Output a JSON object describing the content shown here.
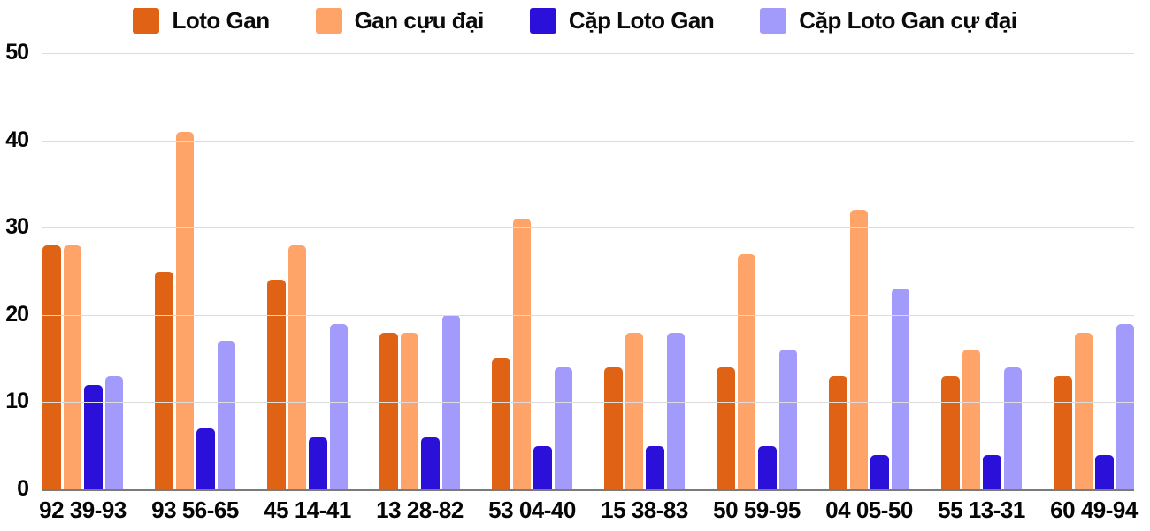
{
  "chart_data": {
    "type": "bar",
    "title": "",
    "xlabel": "",
    "ylabel": "",
    "ylim": [
      0,
      50
    ],
    "yticks": [
      0,
      10,
      20,
      30,
      40,
      50
    ],
    "grid": true,
    "legend_position": "top",
    "categories": [
      "92 39-93",
      "93 56-65",
      "45 14-41",
      "13 28-82",
      "53 04-40",
      "15 38-83",
      "50 59-95",
      "04 05-50",
      "55 13-31",
      "60 49-94"
    ],
    "series": [
      {
        "name": "Loto Gan",
        "color": "#e06215",
        "values": [
          28,
          25,
          24,
          18,
          15,
          14,
          14,
          13,
          13,
          13
        ]
      },
      {
        "name": "Gan cựu đại",
        "color": "#ffa469",
        "values": [
          28,
          41,
          28,
          18,
          31,
          18,
          27,
          32,
          16,
          18
        ]
      },
      {
        "name": "Cặp Loto Gan",
        "color": "#2a10d8",
        "values": [
          12,
          7,
          6,
          6,
          5,
          5,
          5,
          4,
          4,
          4
        ]
      },
      {
        "name": "Cặp Loto Gan cự đại",
        "color": "#a39bfb",
        "values": [
          13,
          17,
          19,
          20,
          14,
          18,
          16,
          23,
          14,
          19
        ]
      }
    ],
    "colors": {
      "gridline": "#dcdcdc",
      "axis_line": "#7a7a7a",
      "label_text": "#060606"
    }
  }
}
